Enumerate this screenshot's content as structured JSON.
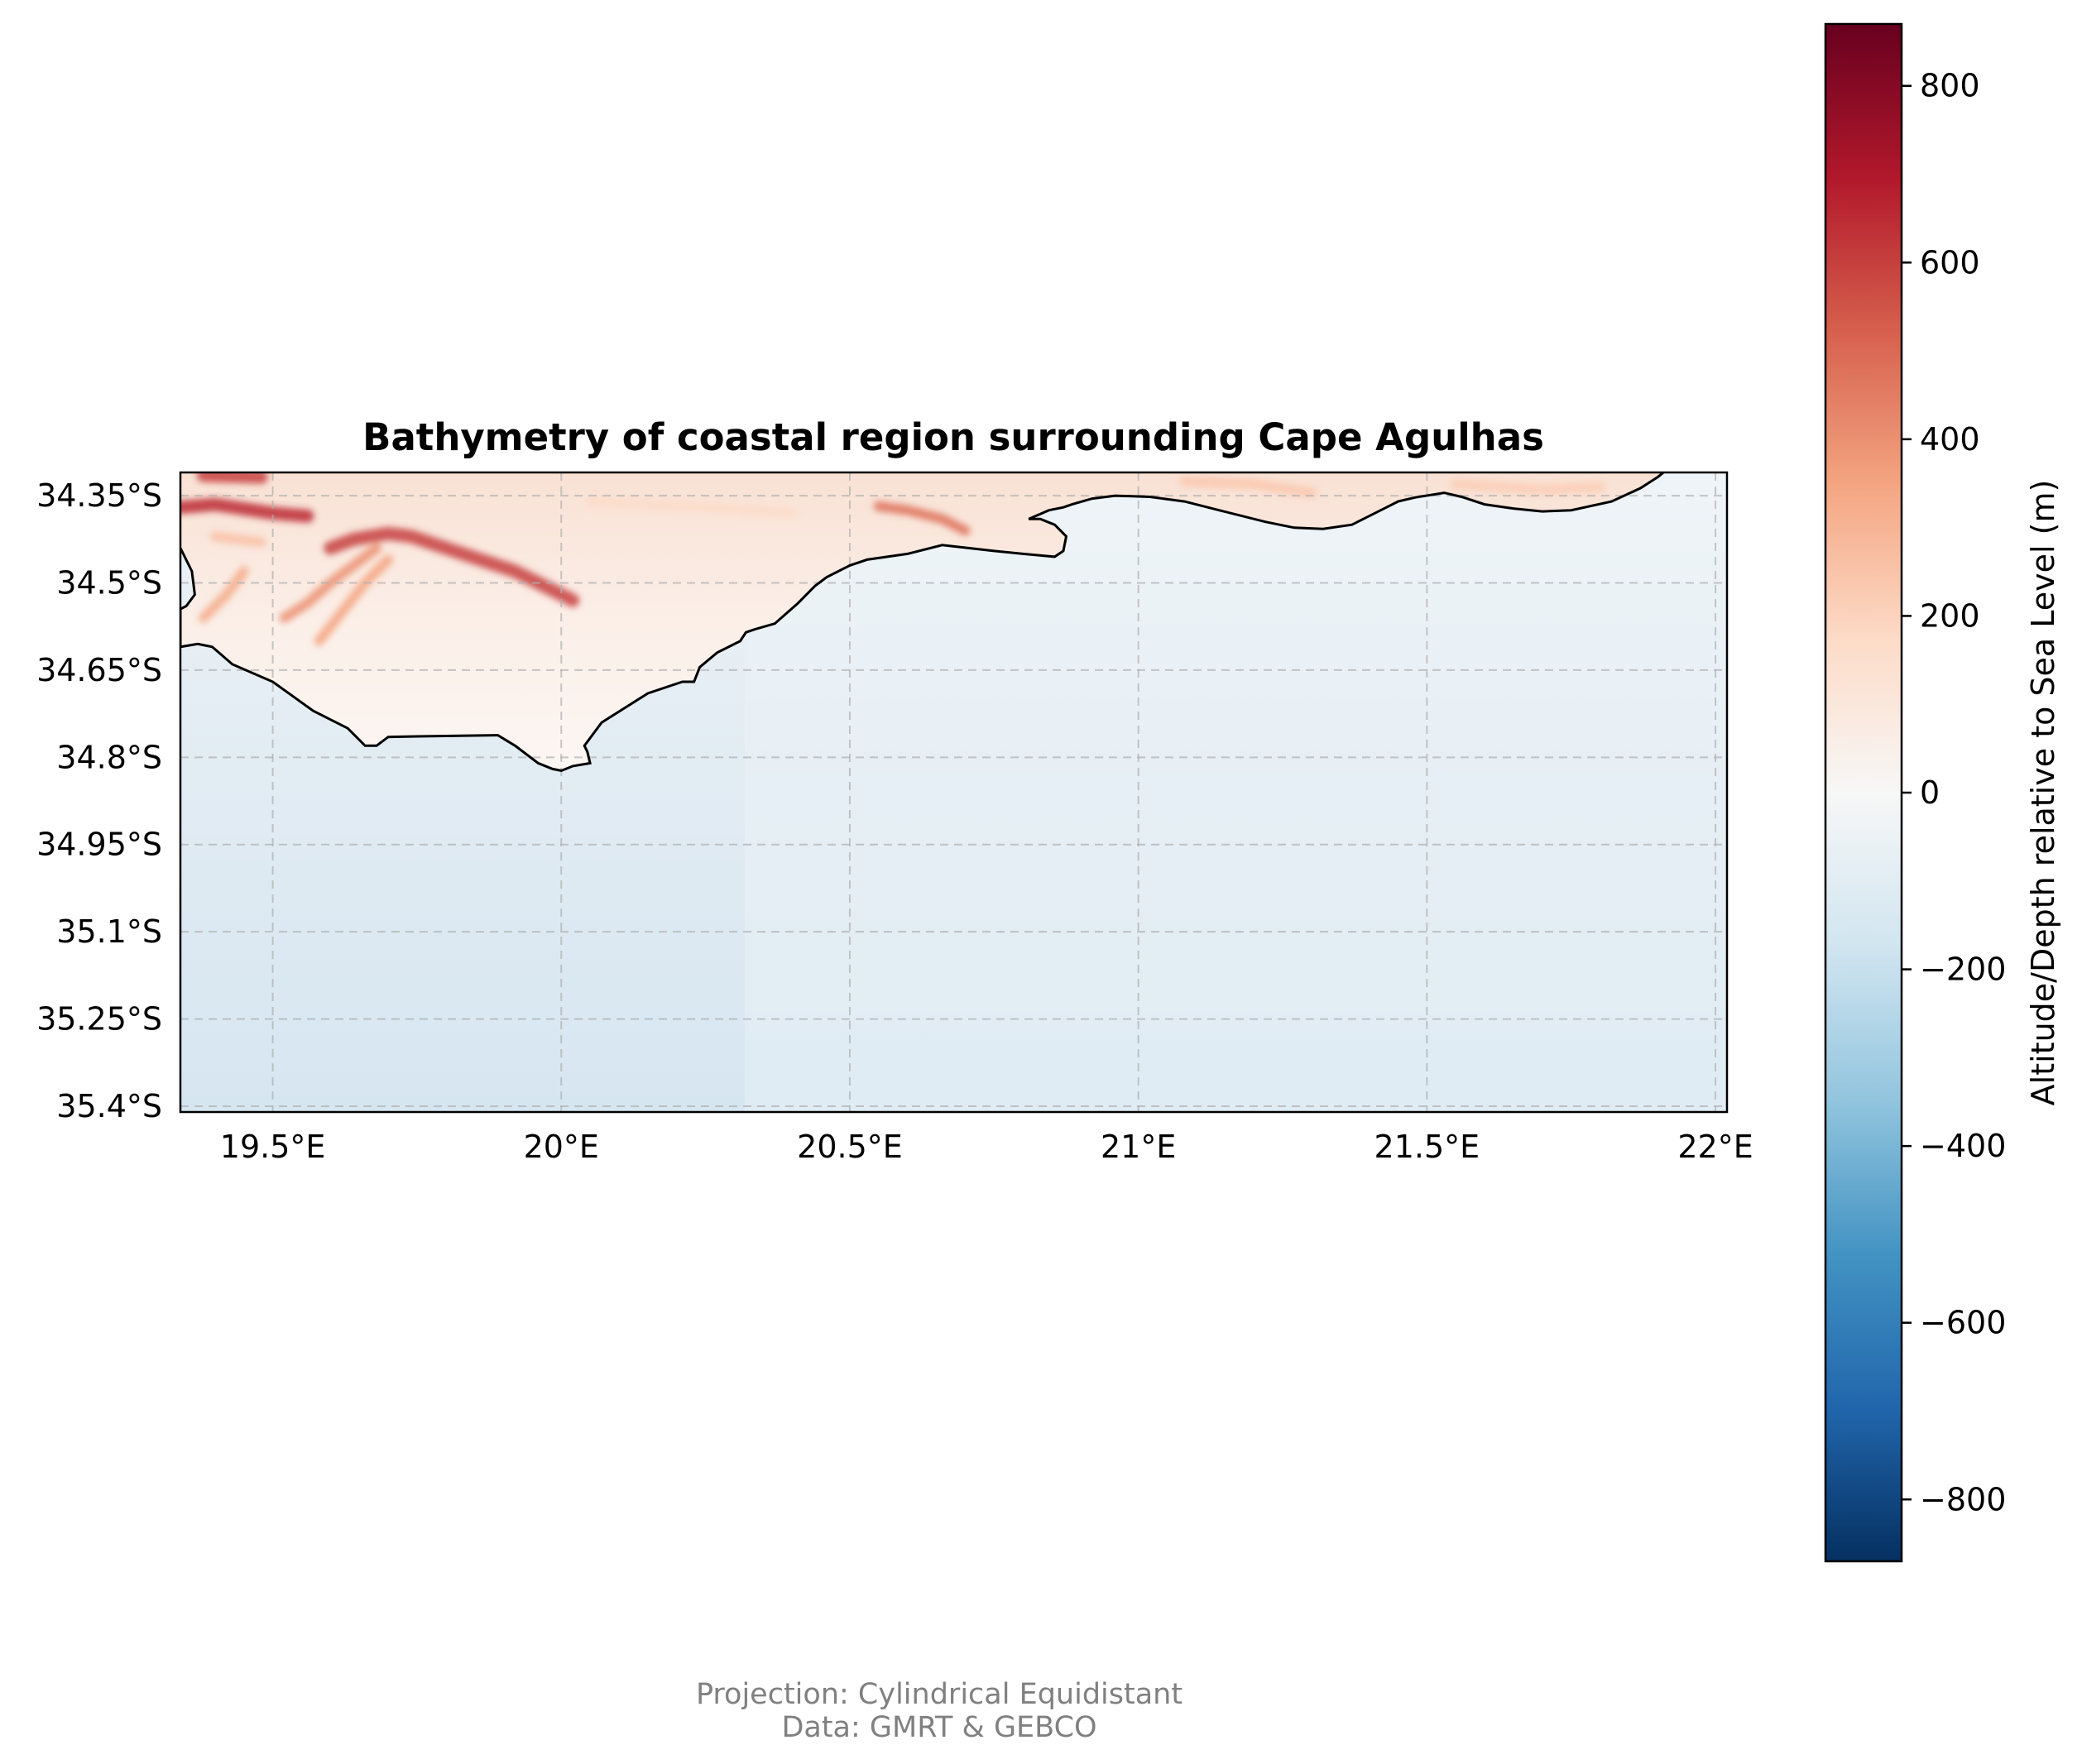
{
  "chart_data": {
    "type": "heatmap",
    "title": "Bathymetry of coastal region surrounding Cape Agulhas",
    "x_ticks": [
      "19.5°E",
      "20°E",
      "20.5°E",
      "21°E",
      "21.5°E",
      "22°E"
    ],
    "x_tick_values": [
      19.5,
      20.0,
      20.5,
      21.0,
      21.5,
      22.0
    ],
    "y_ticks": [
      "34.35°S",
      "34.5°S",
      "34.65°S",
      "34.8°S",
      "34.95°S",
      "35.1°S",
      "35.25°S",
      "35.4°S"
    ],
    "y_tick_values": [
      -34.35,
      -34.5,
      -34.65,
      -34.8,
      -34.95,
      -35.1,
      -35.25,
      -35.4
    ],
    "xlim": [
      19.34,
      22.02
    ],
    "ylim": [
      -35.41,
      -34.31
    ],
    "grid": true,
    "colormap": "RdBu_r",
    "colorbar": {
      "label": "Altitude/Depth relative to Sea Level (m)",
      "range": [
        -870,
        870
      ],
      "ticks": [
        "800",
        "600",
        "400",
        "200",
        "0",
        "−200",
        "−400",
        "−600",
        "−800"
      ],
      "tick_values": [
        800,
        600,
        400,
        200,
        0,
        -200,
        -400,
        -600,
        -800
      ]
    },
    "coastline": [
      [
        19.34,
        -34.44
      ],
      [
        19.36,
        -34.48
      ],
      [
        19.365,
        -34.52
      ],
      [
        19.35,
        -34.54
      ],
      [
        19.34,
        -34.545
      ],
      [
        19.34,
        -34.61
      ],
      [
        19.37,
        -34.605
      ],
      [
        19.395,
        -34.61
      ],
      [
        19.43,
        -34.64
      ],
      [
        19.5,
        -34.67
      ],
      [
        19.57,
        -34.72
      ],
      [
        19.63,
        -34.75
      ],
      [
        19.66,
        -34.78
      ],
      [
        19.68,
        -34.78
      ],
      [
        19.7,
        -34.765
      ],
      [
        19.75,
        -34.764
      ],
      [
        19.89,
        -34.762
      ],
      [
        19.92,
        -34.78
      ],
      [
        19.96,
        -34.81
      ],
      [
        19.985,
        -34.82
      ],
      [
        20.0,
        -34.823
      ],
      [
        20.02,
        -34.815
      ],
      [
        20.05,
        -34.81
      ],
      [
        20.045,
        -34.79
      ],
      [
        20.04,
        -34.78
      ],
      [
        20.07,
        -34.74
      ],
      [
        20.15,
        -34.69
      ],
      [
        20.21,
        -34.67
      ],
      [
        20.23,
        -34.67
      ],
      [
        20.24,
        -34.645
      ],
      [
        20.27,
        -34.62
      ],
      [
        20.31,
        -34.6
      ],
      [
        20.32,
        -34.585
      ],
      [
        20.335,
        -34.58
      ],
      [
        20.37,
        -34.57
      ],
      [
        20.41,
        -34.535
      ],
      [
        20.44,
        -34.505
      ],
      [
        20.46,
        -34.49
      ],
      [
        20.5,
        -34.47
      ],
      [
        20.53,
        -34.46
      ],
      [
        20.6,
        -34.45
      ],
      [
        20.66,
        -34.435
      ],
      [
        20.75,
        -34.445
      ],
      [
        20.8,
        -34.45
      ],
      [
        20.855,
        -34.455
      ],
      [
        20.87,
        -34.445
      ],
      [
        20.875,
        -34.42
      ],
      [
        20.855,
        -34.4
      ],
      [
        20.83,
        -34.39
      ],
      [
        20.81,
        -34.39
      ],
      [
        20.845,
        -34.375
      ],
      [
        20.87,
        -34.37
      ],
      [
        20.885,
        -34.365
      ],
      [
        20.92,
        -34.355
      ],
      [
        20.96,
        -34.35
      ],
      [
        21.02,
        -34.352
      ],
      [
        21.08,
        -34.36
      ],
      [
        21.14,
        -34.375
      ],
      [
        21.22,
        -34.395
      ],
      [
        21.27,
        -34.405
      ],
      [
        21.32,
        -34.407
      ],
      [
        21.37,
        -34.4
      ],
      [
        21.4,
        -34.385
      ],
      [
        21.43,
        -34.37
      ],
      [
        21.45,
        -34.36
      ],
      [
        21.48,
        -34.353
      ],
      [
        21.53,
        -34.345
      ],
      [
        21.56,
        -34.352
      ],
      [
        21.6,
        -34.365
      ],
      [
        21.65,
        -34.372
      ],
      [
        21.7,
        -34.377
      ],
      [
        21.75,
        -34.375
      ],
      [
        21.82,
        -34.36
      ],
      [
        21.87,
        -34.337
      ],
      [
        21.9,
        -34.318
      ],
      [
        21.91,
        -34.31
      ]
    ],
    "land_ridges": [
      {
        "points": [
          [
            19.34,
            -34.37
          ],
          [
            19.4,
            -34.365
          ],
          [
            19.5,
            -34.38
          ],
          [
            19.56,
            -34.385
          ]
        ],
        "elevation": 650
      },
      {
        "points": [
          [
            19.38,
            -34.315
          ],
          [
            19.48,
            -34.318
          ]
        ],
        "elevation": 600
      },
      {
        "points": [
          [
            19.6,
            -34.44
          ],
          [
            19.64,
            -34.425
          ],
          [
            19.7,
            -34.415
          ],
          [
            19.74,
            -34.42
          ],
          [
            19.8,
            -34.44
          ],
          [
            19.86,
            -34.46
          ],
          [
            19.92,
            -34.48
          ],
          [
            19.96,
            -34.5
          ],
          [
            20.02,
            -34.53
          ]
        ],
        "elevation": 600
      },
      {
        "points": [
          [
            19.68,
            -34.44
          ],
          [
            19.64,
            -34.47
          ],
          [
            19.6,
            -34.5
          ],
          [
            19.56,
            -34.535
          ],
          [
            19.52,
            -34.56
          ]
        ],
        "elevation": 400
      },
      {
        "points": [
          [
            19.7,
            -34.46
          ],
          [
            19.66,
            -34.5
          ],
          [
            19.62,
            -34.55
          ],
          [
            19.58,
            -34.6
          ]
        ],
        "elevation": 350
      },
      {
        "points": [
          [
            19.45,
            -34.48
          ],
          [
            19.42,
            -34.52
          ],
          [
            19.38,
            -34.56
          ]
        ],
        "elevation": 330
      },
      {
        "points": [
          [
            19.4,
            -34.42
          ],
          [
            19.48,
            -34.43
          ]
        ],
        "elevation": 260
      },
      {
        "points": [
          [
            20.55,
            -34.368
          ],
          [
            20.6,
            -34.375
          ],
          [
            20.66,
            -34.39
          ],
          [
            20.7,
            -34.41
          ]
        ],
        "elevation": 480
      },
      {
        "points": [
          [
            20.05,
            -34.36
          ],
          [
            20.25,
            -34.37
          ],
          [
            20.4,
            -34.38
          ]
        ],
        "elevation": 170
      },
      {
        "points": [
          [
            21.08,
            -34.325
          ],
          [
            21.2,
            -34.33
          ],
          [
            21.3,
            -34.345
          ]
        ],
        "elevation": 240
      },
      {
        "points": [
          [
            21.55,
            -34.33
          ],
          [
            21.7,
            -34.34
          ],
          [
            21.8,
            -34.335
          ]
        ],
        "elevation": 220
      }
    ]
  },
  "footnote": {
    "line1": "Projection: Cylindrical Equidistant",
    "line2": "Data: GMRT & GEBCO"
  }
}
